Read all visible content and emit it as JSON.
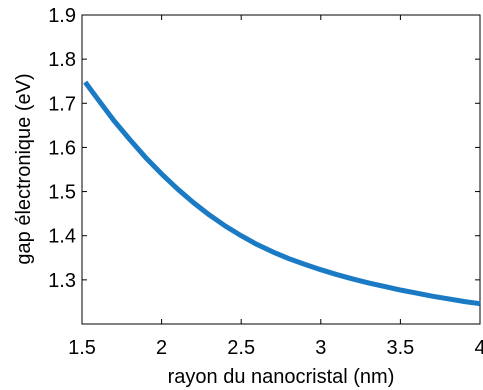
{
  "chart_data": {
    "type": "line",
    "title": "",
    "xlabel": "rayon du nanocristal (nm)",
    "ylabel": "gap électronique (eV)",
    "xlim": [
      1.5,
      4
    ],
    "ylim": [
      1.2,
      1.9
    ],
    "x_ticks": [
      "1.5",
      "2",
      "2.5",
      "3",
      "3.5",
      "4"
    ],
    "y_ticks": [
      "1.3",
      "1.4",
      "1.5",
      "1.6",
      "1.7",
      "1.8",
      "1.9"
    ],
    "grid": false,
    "legend": "none",
    "series": [
      {
        "color": "#1a7bc4",
        "x": [
          1.52,
          1.6,
          1.7,
          1.8,
          1.9,
          2.0,
          2.1,
          2.2,
          2.3,
          2.4,
          2.5,
          2.6,
          2.7,
          2.8,
          2.9,
          3.0,
          3.1,
          3.2,
          3.3,
          3.4,
          3.5,
          3.6,
          3.7,
          3.8,
          3.9,
          4.0
        ],
        "y": [
          1.748,
          1.709,
          1.661,
          1.618,
          1.577,
          1.54,
          1.506,
          1.475,
          1.447,
          1.422,
          1.4,
          1.38,
          1.363,
          1.348,
          1.335,
          1.323,
          1.312,
          1.302,
          1.293,
          1.285,
          1.277,
          1.27,
          1.263,
          1.257,
          1.251,
          1.246
        ]
      }
    ]
  }
}
